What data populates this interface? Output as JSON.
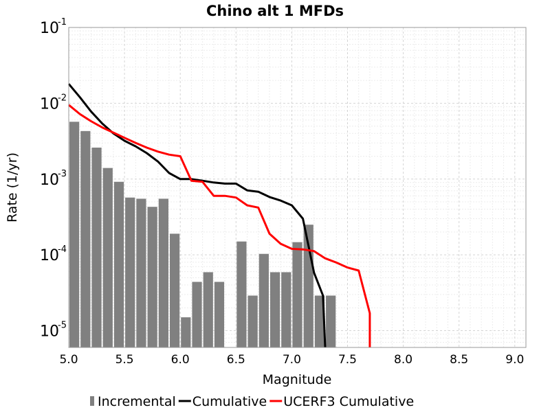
{
  "chart_data": {
    "type": "bar+line",
    "title": "Chino alt 1 MFDs",
    "xlabel": "Magnitude",
    "ylabel": "Rate (1/yr)",
    "xlim": [
      5.0,
      9.1
    ],
    "ylim": [
      6e-06,
      0.1
    ],
    "yscale": "log",
    "grid": true,
    "x_ticks": [
      "5.0",
      "5.5",
      "6.0",
      "6.5",
      "7.0",
      "7.5",
      "8.0",
      "8.5",
      "9.0"
    ],
    "y_ticks": [
      {
        "base": "10",
        "exp": "-5",
        "value": 1e-05
      },
      {
        "base": "10",
        "exp": "-4",
        "value": 0.0001
      },
      {
        "base": "10",
        "exp": "-3",
        "value": 0.001
      },
      {
        "base": "10",
        "exp": "-2",
        "value": 0.01
      },
      {
        "base": "10",
        "exp": "-1",
        "value": 0.1
      }
    ],
    "legend_position": "bottom",
    "series": [
      {
        "name": "Incremental",
        "kind": "bar",
        "color": "#808080",
        "x": [
          5.05,
          5.15,
          5.25,
          5.35,
          5.45,
          5.55,
          5.65,
          5.75,
          5.85,
          5.95,
          6.05,
          6.15,
          6.25,
          6.35,
          6.45,
          6.55,
          6.65,
          6.75,
          6.85,
          6.95,
          7.05,
          7.15,
          7.25,
          7.35
        ],
        "values": [
          0.0057,
          0.0043,
          0.0026,
          0.0014,
          0.00092,
          0.00057,
          0.00055,
          0.00043,
          0.00055,
          0.00019,
          1.5e-05,
          4.4e-05,
          5.9e-05,
          4.4e-05,
          0,
          0.00015,
          2.9e-05,
          0.000103,
          5.9e-05,
          5.9e-05,
          0.000147,
          0.00025,
          2.9e-05,
          2.9e-05
        ]
      },
      {
        "name": "Cumulative",
        "kind": "line",
        "color": "#000000",
        "x": [
          5.0,
          5.1,
          5.2,
          5.3,
          5.4,
          5.5,
          5.6,
          5.7,
          5.8,
          5.9,
          6.0,
          6.1,
          6.2,
          6.3,
          6.4,
          6.5,
          6.6,
          6.7,
          6.8,
          6.9,
          7.0,
          7.1,
          7.2,
          7.28,
          7.3
        ],
        "values": [
          0.018,
          0.012,
          0.0078,
          0.0054,
          0.004,
          0.0032,
          0.0027,
          0.0022,
          0.0017,
          0.0012,
          0.001,
          0.001,
          0.00095,
          0.0009,
          0.00087,
          0.00087,
          0.00071,
          0.00068,
          0.00058,
          0.00052,
          0.00045,
          0.0003,
          5.8e-05,
          2.9e-05,
          6e-06
        ]
      },
      {
        "name": "UCERF3 Cumulative",
        "kind": "line",
        "color": "#ff0000",
        "x": [
          5.0,
          5.1,
          5.2,
          5.3,
          5.4,
          5.5,
          5.6,
          5.7,
          5.8,
          5.9,
          6.0,
          6.1,
          6.2,
          6.3,
          6.4,
          6.5,
          6.6,
          6.7,
          6.8,
          6.9,
          7.0,
          7.1,
          7.2,
          7.3,
          7.4,
          7.5,
          7.6,
          7.7,
          7.7
        ],
        "values": [
          0.0095,
          0.0072,
          0.0058,
          0.0048,
          0.0041,
          0.0035,
          0.003,
          0.0026,
          0.0023,
          0.0021,
          0.002,
          0.00095,
          0.00092,
          0.0006,
          0.0006,
          0.00057,
          0.00045,
          0.00042,
          0.00019,
          0.00014,
          0.00012,
          0.000118,
          0.000112,
          9e-05,
          7.9e-05,
          6.8e-05,
          6.2e-05,
          1.7e-05,
          6e-06
        ]
      }
    ]
  }
}
